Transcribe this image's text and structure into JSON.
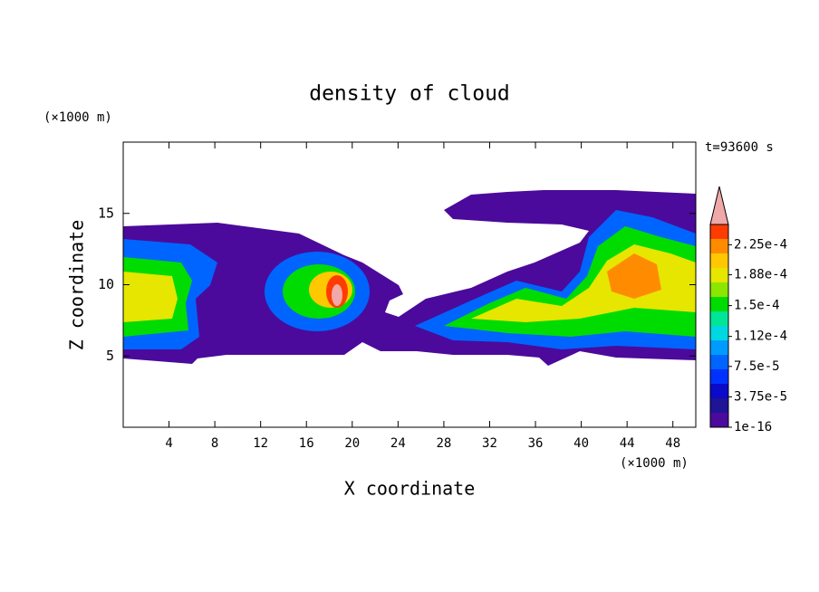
{
  "chart_data": {
    "type": "contour",
    "title": "density of cloud",
    "x_label": "X coordinate",
    "y_label": "Z coordinate",
    "x_unit": "(×1000 m)",
    "y_unit": "(×1000 m)",
    "annotation": "t=93600 s",
    "xlim": [
      0,
      50
    ],
    "xticks": [
      4,
      8,
      12,
      16,
      20,
      24,
      28,
      32,
      36,
      40,
      44,
      48
    ],
    "ylim": [
      0,
      20
    ],
    "yticks": [
      5,
      10,
      15
    ],
    "colorbar": {
      "lim": [
        1e-16,
        0.00025
      ],
      "ticks": [
        {
          "value": 1e-16,
          "label": "1e-16"
        },
        {
          "value": 3.75e-05,
          "label": "3.75e-5"
        },
        {
          "value": 7.5e-05,
          "label": "7.5e-5"
        },
        {
          "value": 0.000112,
          "label": "1.12e-4"
        },
        {
          "value": 0.00015,
          "label": "1.5e-4"
        },
        {
          "value": 0.000188,
          "label": "1.88e-4"
        },
        {
          "value": 0.000225,
          "label": "2.25e-4"
        }
      ],
      "colors": [
        "#4b0a9b",
        "#1e1496",
        "#0a0ac8",
        "#0032ff",
        "#0064ff",
        "#009bff",
        "#00d7e1",
        "#00e696",
        "#00dc00",
        "#8ce600",
        "#e6e600",
        "#ffc800",
        "#ff8c00",
        "#ff3c00"
      ],
      "extend_color": "#f0a8a8"
    }
  }
}
